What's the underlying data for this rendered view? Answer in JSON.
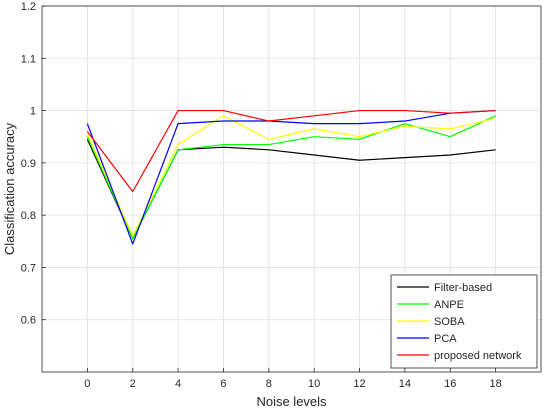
{
  "chart_data": {
    "type": "line",
    "title": "",
    "xlabel": "Noise levels",
    "ylabel": "Classification accuracy",
    "x": [
      0,
      2,
      4,
      6,
      8,
      10,
      12,
      14,
      16,
      18
    ],
    "xlim": [
      -2,
      20
    ],
    "ylim": [
      0.5,
      1.2
    ],
    "xticks": [
      "0",
      "2",
      "4",
      "6",
      "8",
      "10",
      "12",
      "14",
      "16",
      "18"
    ],
    "yticks": [
      "0.6",
      "0.7",
      "0.8",
      "0.9",
      "1",
      "1.1",
      "1.2"
    ],
    "grid": true,
    "legend_position": "bottom-right",
    "series": [
      {
        "name": "Filter-based",
        "color": "#000000",
        "values": [
          0.945,
          0.755,
          0.925,
          0.93,
          0.925,
          0.915,
          0.905,
          0.91,
          0.915,
          0.925
        ]
      },
      {
        "name": "ANPE",
        "color": "#00ff00",
        "values": [
          0.95,
          0.755,
          0.925,
          0.935,
          0.935,
          0.95,
          0.945,
          0.975,
          0.95,
          0.99
        ]
      },
      {
        "name": "SOBA",
        "color": "#ffff00",
        "values": [
          0.955,
          0.76,
          0.935,
          0.99,
          0.945,
          0.965,
          0.95,
          0.97,
          0.965,
          0.985
        ]
      },
      {
        "name": "PCA",
        "color": "#0000ff",
        "values": [
          0.975,
          0.745,
          0.975,
          0.98,
          0.98,
          0.975,
          0.975,
          0.98,
          0.995,
          1.0
        ]
      },
      {
        "name": "proposed network",
        "color": "#ff0000",
        "values": [
          0.96,
          0.845,
          1.0,
          1.0,
          0.98,
          0.99,
          1.0,
          1.0,
          0.995,
          1.0
        ]
      }
    ]
  }
}
